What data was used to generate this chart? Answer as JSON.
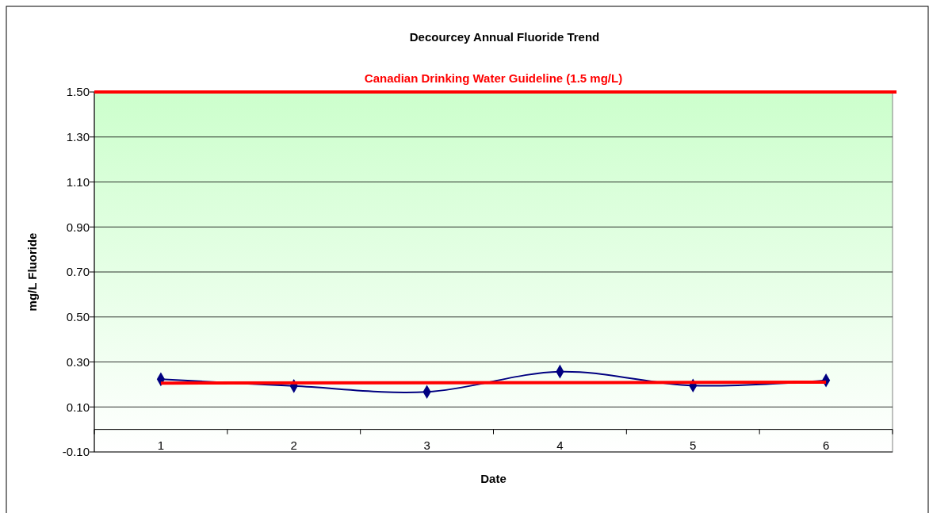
{
  "chart_data": {
    "type": "line",
    "title": "Decourcey Annual Fluoride Trend",
    "xlabel": "Date",
    "ylabel": "mg/L Fluoride",
    "categories": [
      "1",
      "2",
      "3",
      "4",
      "5",
      "6"
    ],
    "series": [
      {
        "color": "#000080",
        "values": [
          0.223,
          0.193,
          0.167,
          0.257,
          0.195,
          0.218
        ],
        "marker": "diamond"
      },
      {
        "type": "line",
        "color": "#ff0000",
        "x": [
          "1",
          "6"
        ],
        "values": [
          0.206,
          0.21
        ],
        "marker": "none"
      }
    ],
    "ylim": [
      -0.1,
      1.5
    ],
    "yticks": [
      {
        "value": -0.1,
        "label": "-0.10"
      },
      {
        "value": 0.1,
        "label": "0.10"
      },
      {
        "value": 0.3,
        "label": "0.30"
      },
      {
        "value": 0.5,
        "label": "0.50"
      },
      {
        "value": 0.7,
        "label": "0.70"
      },
      {
        "value": 0.9,
        "label": "0.90"
      },
      {
        "value": 1.1,
        "label": "1.10"
      },
      {
        "value": 1.3,
        "label": "1.30"
      },
      {
        "value": 1.5,
        "label": "1.50"
      }
    ],
    "grid": "y",
    "ref_lines": [
      {
        "axis": "y",
        "value": 1.5,
        "label": "Canadian Drinking Water Guideline (1.5 mg/L)",
        "color": "#ff0000"
      }
    ]
  }
}
